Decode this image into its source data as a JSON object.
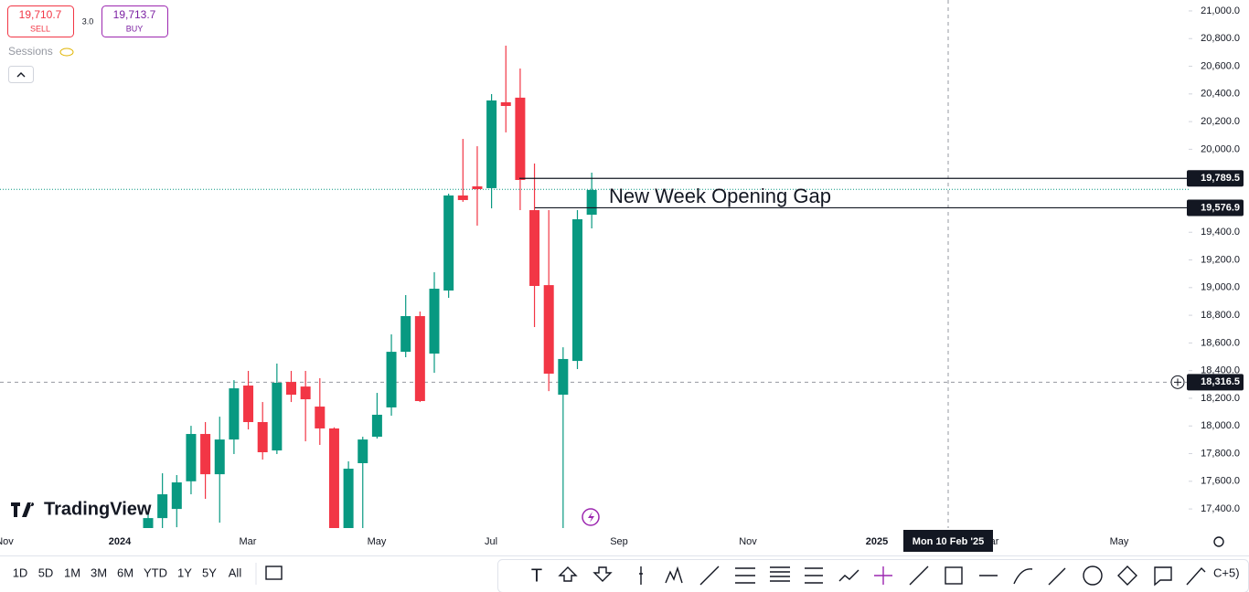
{
  "chart_data": {
    "type": "candlestick",
    "open": [
      17250,
      17334,
      17400,
      17600,
      17942,
      17651,
      17902,
      18292,
      18028,
      17823,
      18318,
      18285,
      18140,
      17982,
      17262,
      17731,
      17922,
      18134,
      18536,
      18794,
      18523,
      18979,
      19666,
      19732,
      19719,
      20340,
      20373,
      19560,
      19018,
      18226,
      18470,
      19527
    ],
    "high": [
      17367,
      17658,
      17645,
      18001,
      18028,
      18067,
      18331,
      18398,
      18173,
      18451,
      18398,
      18398,
      18345,
      17990,
      17744,
      17922,
      18239,
      18662,
      18946,
      18827,
      19111,
      19679,
      20075,
      20022,
      20399,
      20749,
      20584,
      19897,
      19560,
      18569,
      19560,
      19831
    ],
    "low": [
      17230,
      17262,
      17268,
      17506,
      17473,
      17301,
      17797,
      17975,
      17757,
      17797,
      18173,
      17889,
      17863,
      17262,
      17262,
      17262,
      17909,
      18074,
      18497,
      18173,
      18384,
      18926,
      19620,
      19448,
      19573,
      20122,
      19560,
      18715,
      18252,
      17262,
      18411,
      19428
    ],
    "close": [
      17334,
      17506,
      17592,
      17942,
      17651,
      17902,
      18272,
      18028,
      17810,
      18312,
      18226,
      18193,
      17982,
      17262,
      17691,
      17902,
      18081,
      18536,
      18794,
      18180,
      18992,
      19666,
      19633,
      19712,
      20353,
      20313,
      19778,
      19012,
      18378,
      18484,
      19494,
      19706
    ],
    "up_color": "#089981",
    "down_color": "#f23645",
    "ylim": [
      17262,
      21079
    ],
    "yticks": [
      {
        "value": 17400,
        "label": "17,400.0"
      },
      {
        "value": 17600,
        "label": "17,600.0"
      },
      {
        "value": 17800,
        "label": "17,800.0"
      },
      {
        "value": 18000,
        "label": "18,000.0"
      },
      {
        "value": 18200,
        "label": "18,200.0"
      },
      {
        "value": 18400,
        "label": "18,400.0"
      },
      {
        "value": 18600,
        "label": "18,600.0"
      },
      {
        "value": 18800,
        "label": "18,800.0"
      },
      {
        "value": 19000,
        "label": "19,000.0"
      },
      {
        "value": 19200,
        "label": "19,200.0"
      },
      {
        "value": 19400,
        "label": "19,400.0"
      },
      {
        "value": 19600,
        "label": "19,600.0"
      },
      {
        "value": 19800,
        "label": "19,800.0"
      },
      {
        "value": 20000,
        "label": "20,000.0"
      },
      {
        "value": 20200,
        "label": "20,200.0"
      },
      {
        "value": 20400,
        "label": "20,400.0"
      },
      {
        "value": 20600,
        "label": "20,600.0"
      },
      {
        "value": 20800,
        "label": "20,800.0"
      },
      {
        "value": 21000,
        "label": "21,000.0"
      }
    ],
    "x_axis_labels": [
      "Nov",
      "2024",
      "Mar",
      "May",
      "Jul",
      "Sep",
      "Nov",
      "2025",
      "Mar",
      "May"
    ],
    "annotation": "New Week Opening Gap",
    "price_lines": [
      {
        "value": 19789.5,
        "label": "19,789.5"
      },
      {
        "value": 19576.9,
        "label": "19,576.9"
      }
    ],
    "last_price": {
      "value": 19710.7,
      "label": "19,710.7"
    },
    "crosshair": {
      "value": 18316.5,
      "label": "18,316.5",
      "date": "Mon 10 Feb '25"
    }
  },
  "ui": {
    "sell_label": "SELL",
    "spread": "3.0",
    "buy_price": "19,713.7",
    "buy_label": "BUY",
    "sessions": "Sessions",
    "logo": "TradingView",
    "timeframes": [
      "1D",
      "5D",
      "1M",
      "3M",
      "6M",
      "YTD",
      "1Y",
      "5Y",
      "All"
    ],
    "toolbar_more": "C+5)"
  }
}
